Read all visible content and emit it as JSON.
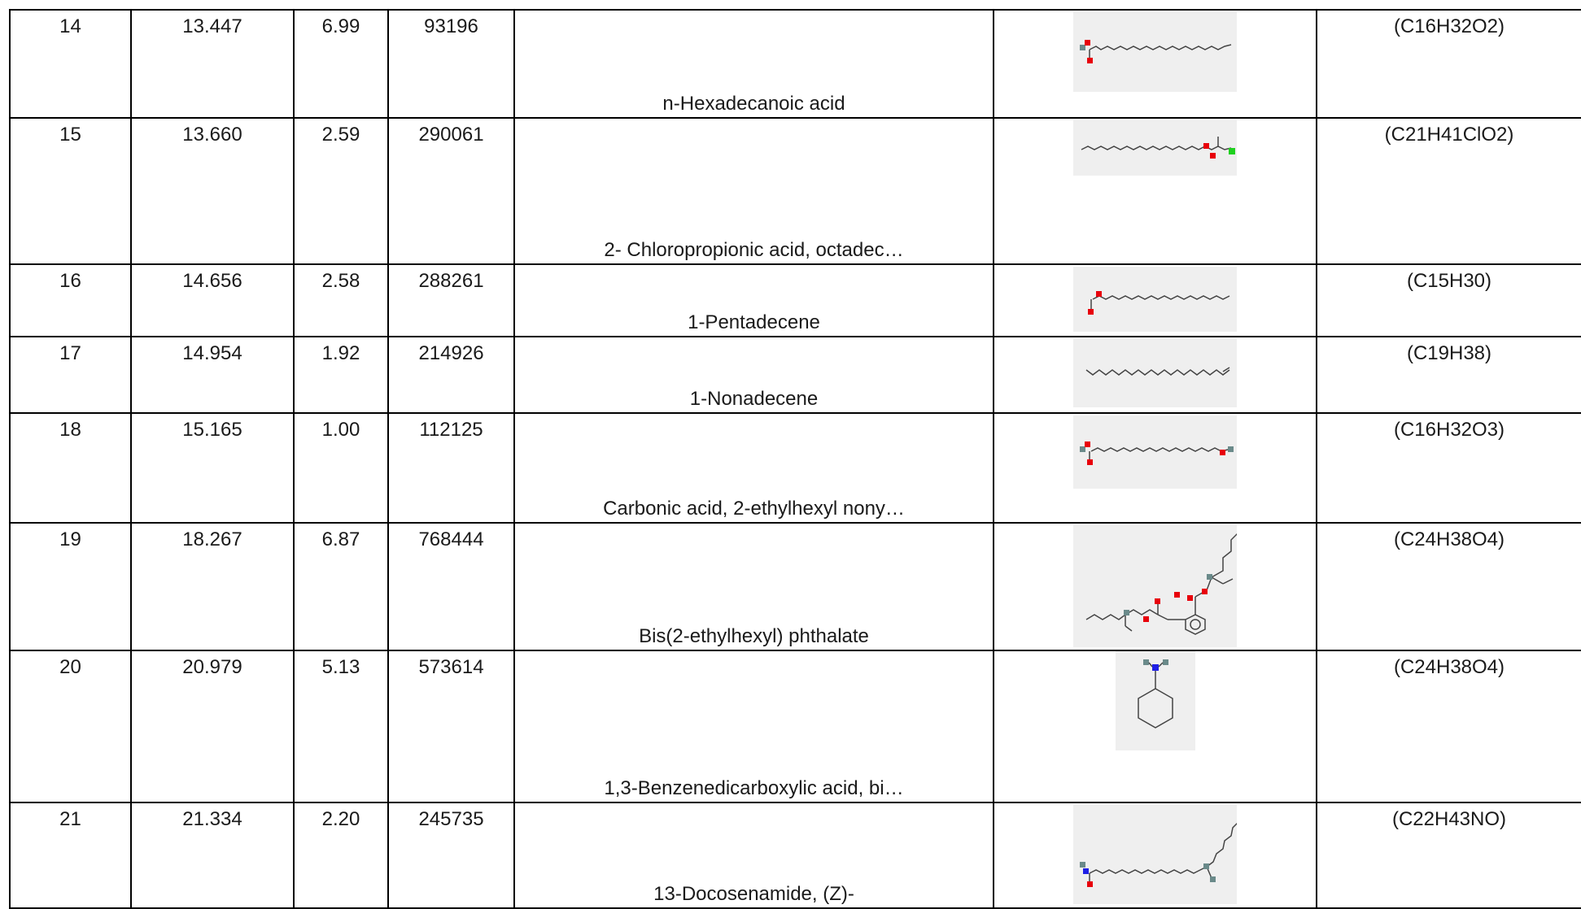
{
  "table": {
    "rows": [
      {
        "no": "14",
        "rt": "13.447",
        "area": "6.99",
        "id": "93196",
        "name": "n-Hexadecanoic acid",
        "formula": "(C16H32O2)",
        "structure_icon": "palmitic-acid-structure"
      },
      {
        "no": "15",
        "rt": "13.660",
        "area": "2.59",
        "id": "290061",
        "name": "2- Chloropropionic acid, octadec…",
        "formula": "(C21H41ClO2)",
        "structure_icon": "chloropropionate-structure"
      },
      {
        "no": "16",
        "rt": "14.656",
        "area": "2.58",
        "id": "288261",
        "name": "1-Pentadecene",
        "formula": "(C15H30)",
        "structure_icon": "pentadecene-structure"
      },
      {
        "no": "17",
        "rt": "14.954",
        "area": "1.92",
        "id": "214926",
        "name": "1-Nonadecene",
        "formula": "(C19H38)",
        "structure_icon": "nonadecene-structure"
      },
      {
        "no": "18",
        "rt": "15.165",
        "area": "1.00",
        "id": "112125",
        "name": "Carbonic acid, 2-ethylhexyl nony…",
        "formula": "(C16H32O3)",
        "structure_icon": "carbonate-structure"
      },
      {
        "no": "19",
        "rt": "18.267",
        "area": "6.87",
        "id": "768444",
        "name": "Bis(2-ethylhexyl) phthalate",
        "formula": "(C24H38O4)",
        "structure_icon": "phthalate-structure"
      },
      {
        "no": "20",
        "rt": "20.979",
        "area": "5.13",
        "id": "573614",
        "name": "1,3-Benzenedicarboxylic acid, bi…",
        "formula": "(C24H38O4)",
        "structure_icon": "cyclohexylamine-structure"
      },
      {
        "no": "21",
        "rt": "21.334",
        "area": "2.20",
        "id": "245735",
        "name": "13-Docosenamide, (Z)-",
        "formula": "(C22H43NO)",
        "structure_icon": "docosenamide-structure"
      }
    ]
  },
  "colors": {
    "oxygen": "#e8000b",
    "nitrogen": "#1f1fe6",
    "chlorine": "#1fd11f",
    "hetero_gray": "#6a8a8a",
    "bond": "#444444",
    "image_bg": "#efefef"
  }
}
